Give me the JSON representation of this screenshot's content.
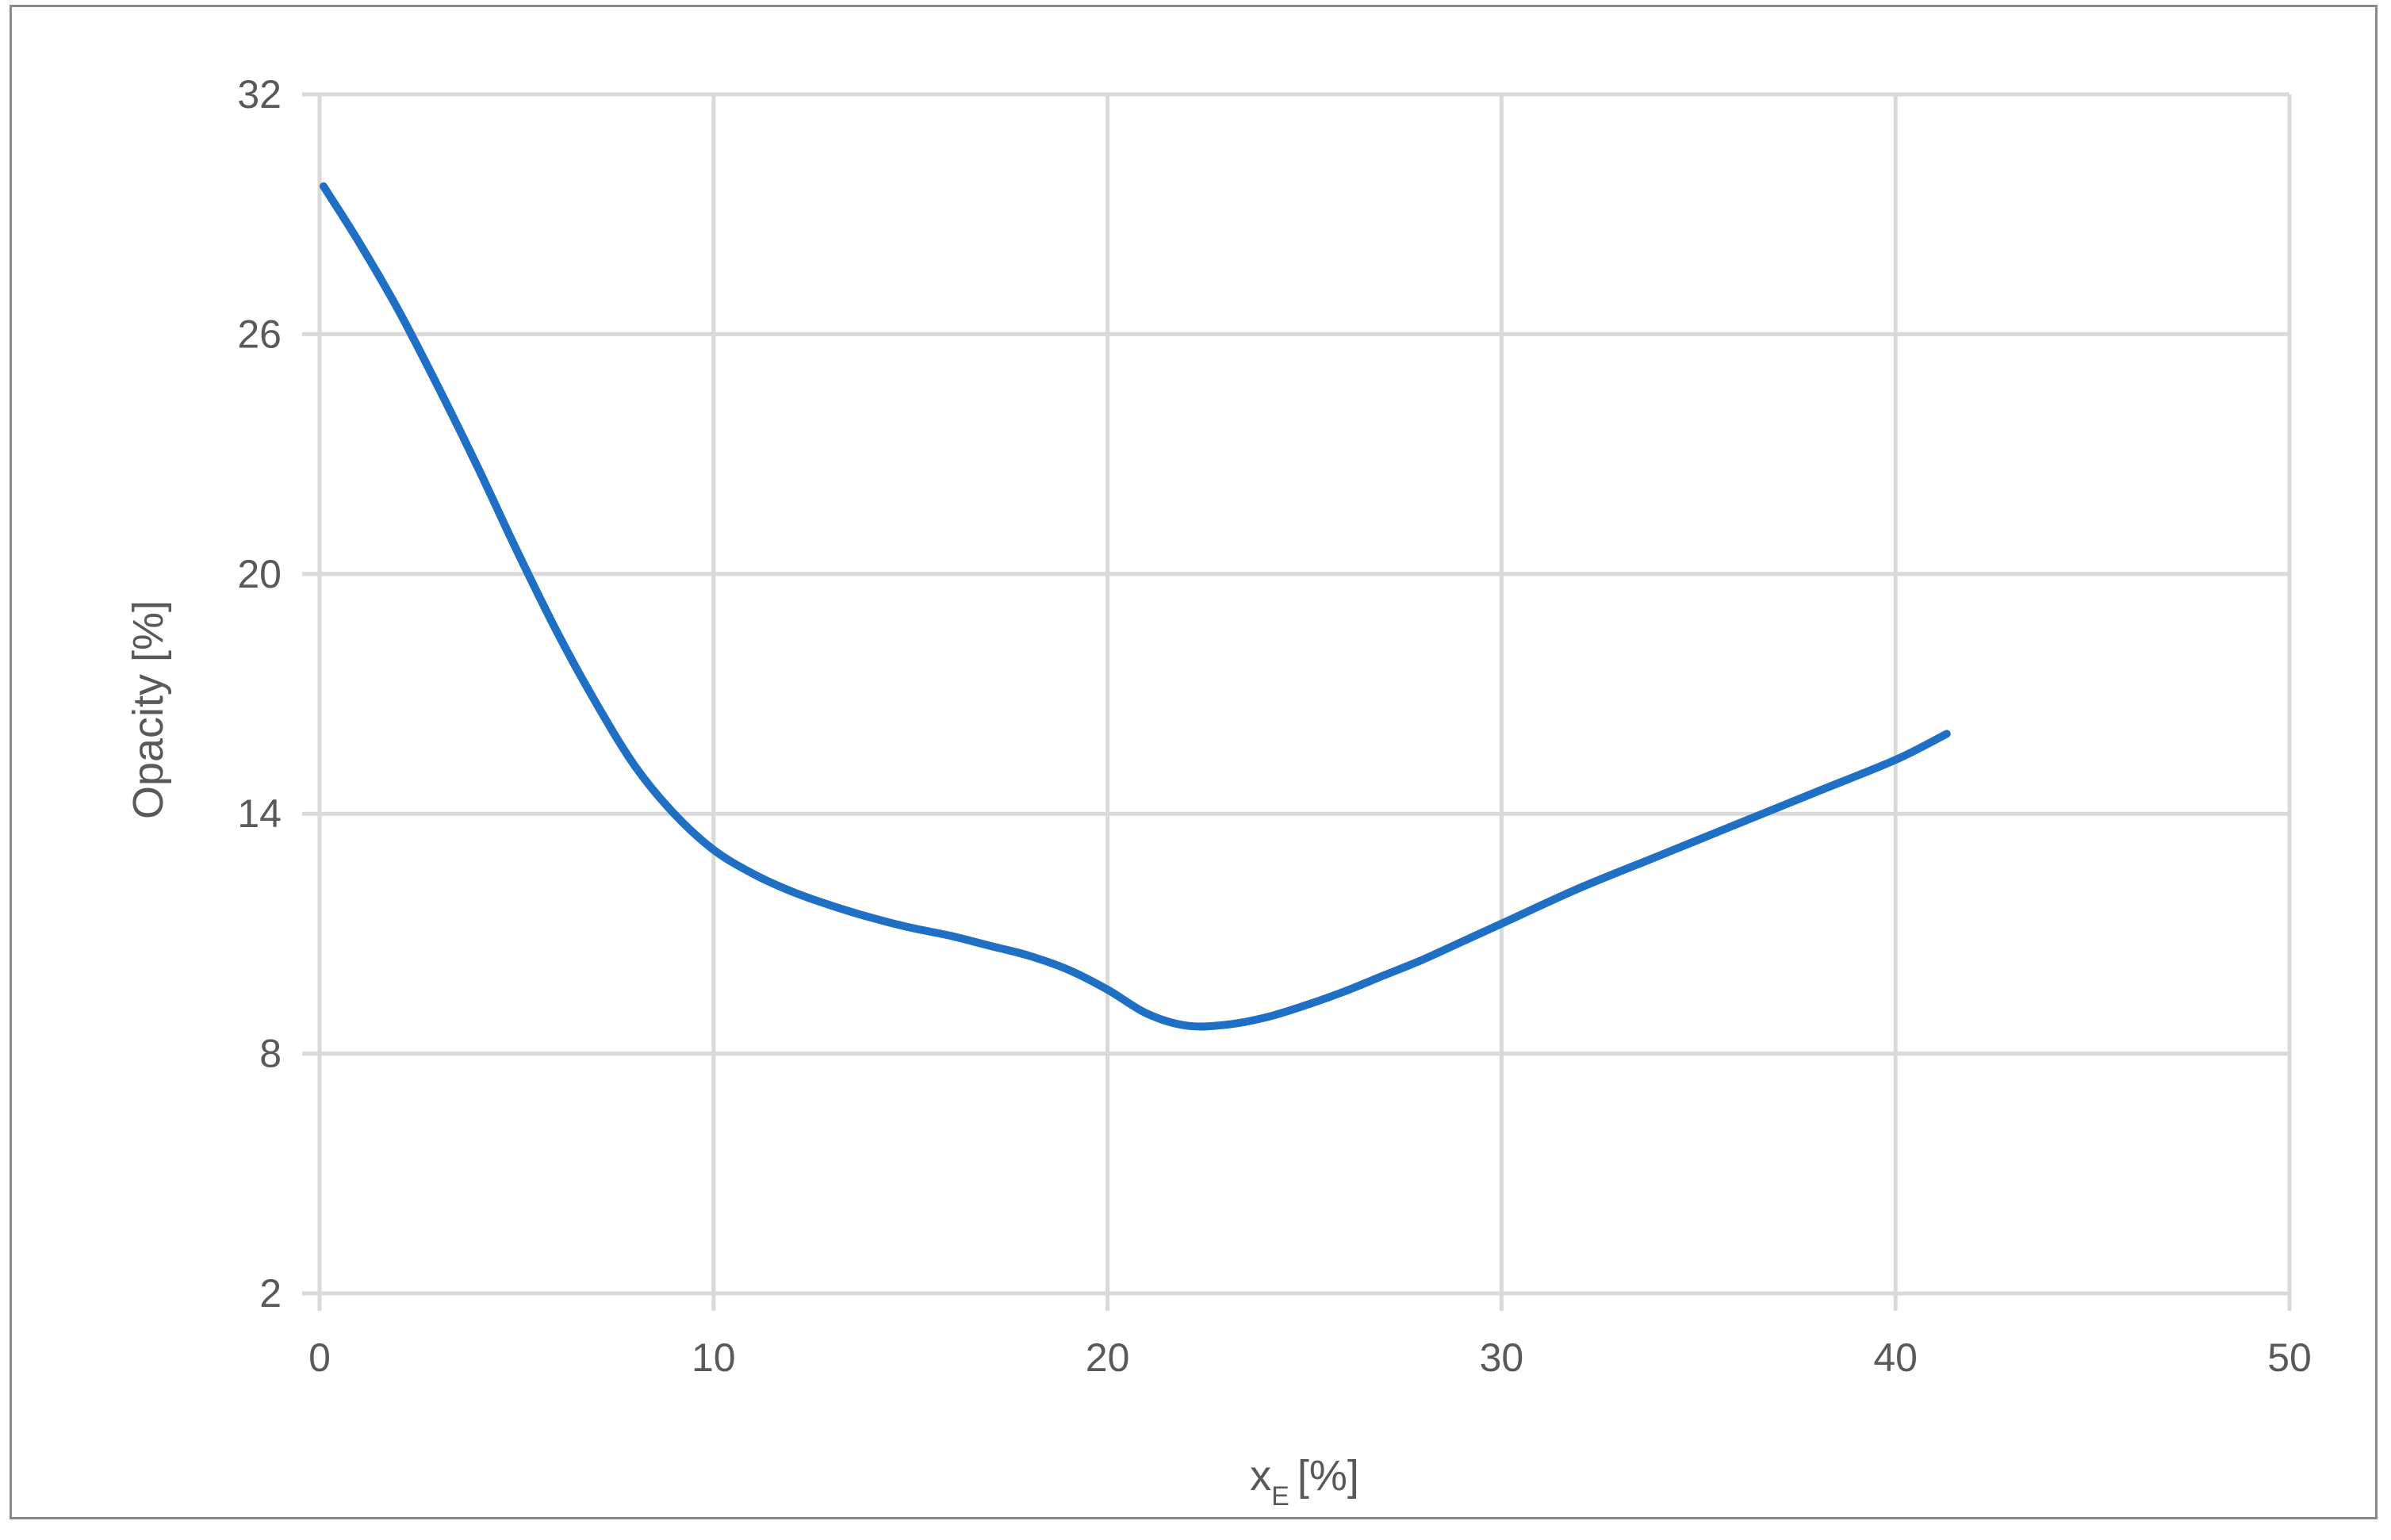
{
  "chart_data": {
    "type": "line",
    "title": "",
    "xlabel": "x",
    "xlabel_subscript": "E",
    "xlabel_unit": "[%]",
    "ylabel": "Opacity [%]",
    "xlim": [
      0,
      50
    ],
    "ylim": [
      2,
      32
    ],
    "x_ticks": [
      0,
      10,
      20,
      30,
      40,
      50
    ],
    "y_ticks": [
      2,
      8,
      14,
      20,
      26,
      32
    ],
    "x_tick_labels": [
      "0",
      "10",
      "20",
      "30",
      "40",
      "50"
    ],
    "y_tick_labels": [
      "2",
      "8",
      "14",
      "20",
      "26",
      "32"
    ],
    "grid": true,
    "legend": "none",
    "series": [
      {
        "color": "#1f6fc5",
        "x": [
          0.1,
          1,
          2,
          3,
          4,
          5,
          6,
          7,
          8,
          9,
          10,
          11,
          12,
          13,
          14,
          15,
          16,
          17,
          18,
          19,
          20,
          21,
          22,
          23,
          24,
          25,
          26,
          27,
          28,
          29,
          30,
          32,
          34,
          36,
          38,
          40,
          41.3
        ],
        "values": [
          29.7,
          28.3,
          26.6,
          24.7,
          22.7,
          20.6,
          18.6,
          16.8,
          15.2,
          14.0,
          13.1,
          12.5,
          12.05,
          11.7,
          11.4,
          11.15,
          10.95,
          10.7,
          10.45,
          10.1,
          9.6,
          9.0,
          8.7,
          8.72,
          8.9,
          9.2,
          9.55,
          9.95,
          10.35,
          10.8,
          11.25,
          12.15,
          12.95,
          13.75,
          14.55,
          15.35,
          16.0
        ]
      }
    ]
  }
}
